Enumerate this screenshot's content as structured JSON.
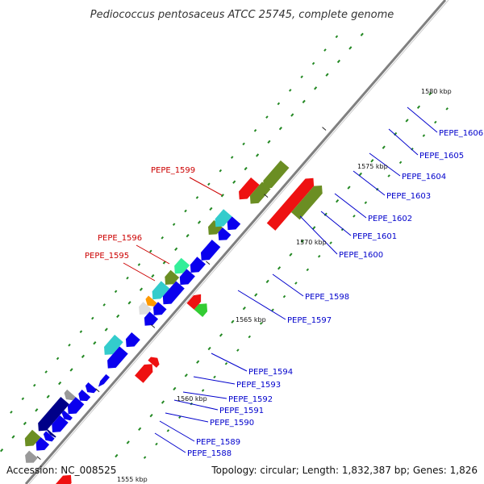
{
  "title": "Pediococcus pentosaceus ATCC 25745, complete genome",
  "footer": {
    "accession": "Accession: NC_008525",
    "summary": "Topology: circular; Length: 1,832,387 bp; Genes: 1,826"
  },
  "colors": {
    "backbone": "#808080",
    "blue": "#0a00ee",
    "red": "#ee1111",
    "olive": "#6b8e23",
    "cyan": "#33cccc",
    "green": "#33cc33",
    "teal": "#33ee99",
    "grey": "#999999",
    "lightgrey": "#dddddd",
    "navy": "#000088",
    "orange": "#ff9900",
    "label_forward": "#cc0000",
    "label_reverse": "#0000cc",
    "gc_tick": "#228822"
  },
  "scale_ticks": [
    "1555 kbp",
    "1560 kbp",
    "1565 kbp",
    "1570 kbp",
    "1575 kbp",
    "1580 kbp"
  ],
  "gene_labels_reverse": [
    "PEPE_1588",
    "PEPE_1589",
    "PEPE_1590",
    "PEPE_1591",
    "PEPE_1592",
    "PEPE_1593",
    "PEPE_1594",
    "PEPE_1597",
    "PEPE_1598",
    "PEPE_1600",
    "PEPE_1601",
    "PEPE_1602",
    "PEPE_1603",
    "PEPE_1604",
    "PEPE_1605",
    "PEPE_1606"
  ],
  "gene_labels_forward": [
    "PEPE_1595",
    "PEPE_1596",
    "PEPE_1599"
  ]
}
